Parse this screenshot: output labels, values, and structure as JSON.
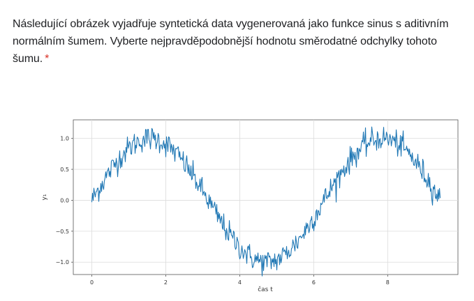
{
  "question": {
    "text": "Následující obrázek vyjadřuje syntetická data vygenerovaná jako funkce sinus s aditivním normálním šumem. Vyberte nejpravděpodobnější hodnotu směrodatné odchylky tohoto šumu.",
    "required_mark": "*"
  },
  "colors": {
    "line": "#1f77b4",
    "required": "#d93025",
    "grid": "#dcdcdc",
    "axis": "#555555"
  },
  "chart_data": {
    "type": "line",
    "title": "",
    "xlabel": "čas t",
    "ylabel": "y₁",
    "xlim": [
      -0.5,
      9.9
    ],
    "ylim": [
      -1.2,
      1.3
    ],
    "xticks": [
      0,
      2,
      4,
      6,
      8
    ],
    "xtick_labels": [
      "0",
      "2",
      "4",
      "6",
      "8"
    ],
    "yticks": [
      -1.0,
      -0.5,
      0.0,
      0.5,
      1.0
    ],
    "ytick_labels": [
      "−1.0",
      "−0.5",
      "0.0",
      "0.5",
      "1.0"
    ],
    "grid": true,
    "series": [
      {
        "function": "sin",
        "x_start": 0,
        "x_end": 9.42,
        "n_points": 500,
        "noise_std": 0.1
      }
    ]
  }
}
